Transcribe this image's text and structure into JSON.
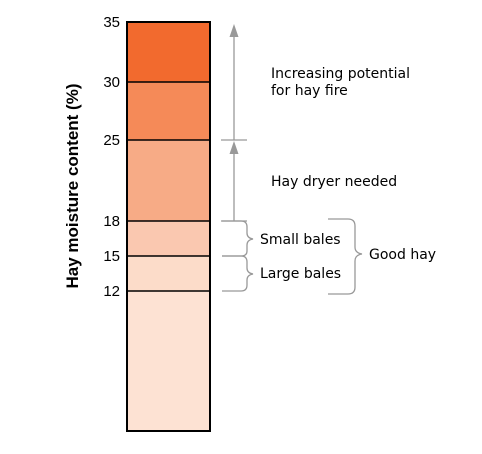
{
  "axis": {
    "label": "Hay moisture content (%)",
    "ticks": [
      35,
      30,
      25,
      18,
      15,
      12
    ],
    "range": [
      0,
      35
    ]
  },
  "bands": [
    {
      "from": 30,
      "to": 35,
      "color": "#f26a2e"
    },
    {
      "from": 25,
      "to": 30,
      "color": "#f58a58"
    },
    {
      "from": 18,
      "to": 25,
      "color": "#f7ab86"
    },
    {
      "from": 15,
      "to": 18,
      "color": "#fac8b0"
    },
    {
      "from": 12,
      "to": 15,
      "color": "#fcdcc9"
    },
    {
      "from": 0,
      "to": 12,
      "color": "#fde2d3"
    }
  ],
  "annotations": {
    "fire_line1": "Increasing potential",
    "fire_line2": "for hay fire",
    "dryer": "Hay dryer needed",
    "small_bales": "Small bales",
    "large_bales": "Large bales",
    "good_hay": "Good hay"
  },
  "colors": {
    "arrow": "#999999",
    "bracket": "#999999",
    "outline": "#000000"
  }
}
